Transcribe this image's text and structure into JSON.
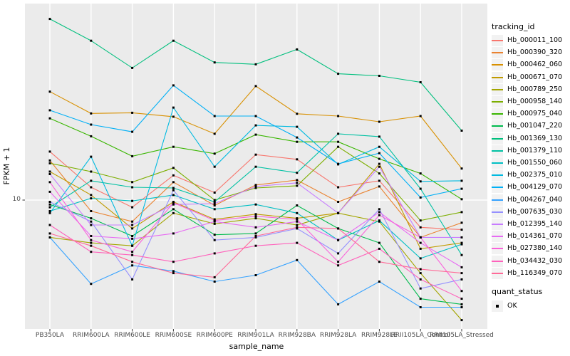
{
  "figure": {
    "background": "#FFFFFF",
    "panel_background": "#EBEBEB",
    "gridline_color": "#FFFFFF",
    "axis_text_color": "#4D4D4D",
    "tick_mark_color": "#333333",
    "point_color": "#000000"
  },
  "axes": {
    "x": {
      "title": "sample_name"
    },
    "y": {
      "title": "FPKM + 1",
      "tick_labels": [
        "10"
      ],
      "scale": "log10"
    }
  },
  "legend": {
    "tracking": {
      "title": "tracking_id"
    },
    "quant": {
      "title": "quant_status",
      "items": [
        {
          "label": "OK",
          "symbol": "black-square"
        }
      ]
    }
  },
  "chart_data": {
    "type": "line",
    "title": "",
    "xlabel": "sample_name",
    "ylabel": "FPKM + 1",
    "y_scale": "log10",
    "y_axis_ticks": [
      10
    ],
    "y_range_approx": [
      2.2,
      97
    ],
    "grid": true,
    "legend_position": "right",
    "point_shape": "filled-black-square",
    "quant_status": "OK",
    "x_categories": [
      "PB350LA",
      "RRIM600LA",
      "RRIM600LE",
      "RRIM600SE",
      "RRIM600PE",
      "RRIM901LA",
      "RRIM928BA",
      "RRIM928LA",
      "RRIM928LE",
      "RRII105LA_Control",
      "RRII105LA_Stressed"
    ],
    "series": [
      {
        "name": "Hb_000011_100",
        "color": "#F8766D",
        "values": [
          17.5,
          11.6,
          9.2,
          13.3,
          10.9,
          16.9,
          16.0,
          11.6,
          12.5,
          7.3,
          7.1
        ]
      },
      {
        "name": "Hb_000390_320",
        "color": "#EA8331",
        "values": [
          15.8,
          8.8,
          7.8,
          12.3,
          9.4,
          11.9,
          12.6,
          9.8,
          11.7,
          6.5,
          7.7
        ]
      },
      {
        "name": "Hb_000462_060",
        "color": "#D89000",
        "values": [
          35.0,
          27.2,
          27.4,
          26.2,
          21.5,
          37.3,
          27.1,
          26.4,
          24.7,
          26.4,
          14.4
        ]
      },
      {
        "name": "Hb_000671_070",
        "color": "#C09B00",
        "values": [
          13.9,
          10.6,
          7.2,
          9.8,
          8.0,
          8.5,
          8.1,
          8.6,
          15.2,
          5.7,
          6.1
        ]
      },
      {
        "name": "Hb_000789_250",
        "color": "#A3A500",
        "values": [
          6.5,
          6.1,
          5.9,
          8.6,
          7.6,
          8.1,
          7.5,
          8.6,
          7.8,
          4.3,
          2.5
        ]
      },
      {
        "name": "Hb_000958_140",
        "color": "#7CAE00",
        "values": [
          15.3,
          13.9,
          12.3,
          14.5,
          10.0,
          11.5,
          11.8,
          18.5,
          13.6,
          7.9,
          8.7
        ]
      },
      {
        "name": "Hb_000975_040",
        "color": "#39B600",
        "values": [
          25.7,
          20.9,
          16.6,
          18.5,
          17.1,
          21.3,
          19.6,
          19.6,
          16.1,
          13.6,
          10.1
        ]
      },
      {
        "name": "Hb_001047_220",
        "color": "#00BB4E",
        "values": [
          9.5,
          8.1,
          6.6,
          9.0,
          6.7,
          6.8,
          9.4,
          7.2,
          6.1,
          3.2,
          3.0
        ]
      },
      {
        "name": "Hb_001369_130",
        "color": "#00BF7D",
        "values": [
          81.0,
          63.0,
          46.0,
          63.0,
          49.0,
          48.0,
          57.0,
          43.0,
          42.0,
          39.0,
          22.3
        ]
      },
      {
        "name": "Hb_001379_110",
        "color": "#00C1A3",
        "values": [
          9.2,
          12.5,
          11.6,
          11.5,
          9.8,
          14.7,
          13.7,
          21.5,
          20.8,
          11.4,
          5.3
        ]
      },
      {
        "name": "Hb_001550_060",
        "color": "#00BFC4",
        "values": [
          8.8,
          10.2,
          9.9,
          10.6,
          9.0,
          9.5,
          8.6,
          6.3,
          7.9,
          5.1,
          6.0
        ]
      },
      {
        "name": "Hb_002375_010",
        "color": "#00BAE0",
        "values": [
          8.6,
          16.5,
          5.9,
          29.1,
          14.7,
          23.7,
          23.3,
          15.1,
          18.5,
          12.4,
          12.5
        ]
      },
      {
        "name": "Hb_004129_070",
        "color": "#00B0F6",
        "values": [
          28.2,
          23.9,
          22.0,
          37.6,
          26.4,
          26.4,
          20.6,
          15.2,
          17.2,
          10.3,
          11.4
        ]
      },
      {
        "name": "Hb_004267_040",
        "color": "#35A2FF",
        "values": [
          6.5,
          3.8,
          4.7,
          4.4,
          3.9,
          4.2,
          5.0,
          3.0,
          3.9,
          2.9,
          2.9
        ]
      },
      {
        "name": "Hb_007635_030",
        "color": "#9590FF",
        "values": [
          9.8,
          7.8,
          4.0,
          11.2,
          6.3,
          6.5,
          7.2,
          5.4,
          9.0,
          3.6,
          4.0
        ]
      },
      {
        "name": "Hb_012395_140",
        "color": "#C77CFF",
        "values": [
          13.5,
          7.5,
          7.5,
          9.5,
          9.6,
          11.7,
          12.2,
          8.6,
          14.7,
          6.5,
          6.5
        ]
      },
      {
        "name": "Hb_014361_070",
        "color": "#E76BF3",
        "values": [
          11.0,
          6.6,
          6.4,
          6.8,
          7.8,
          7.3,
          7.8,
          6.3,
          8.7,
          6.1,
          4.6
        ]
      },
      {
        "name": "Hb_027380_140",
        "color": "#FA62DB",
        "values": [
          12.3,
          6.3,
          5.5,
          9.7,
          7.9,
          8.3,
          8.0,
          4.9,
          8.4,
          6.5,
          3.5
        ]
      },
      {
        "name": "Hb_034432_030",
        "color": "#FF62BC",
        "values": [
          7.5,
          5.5,
          5.3,
          4.9,
          5.4,
          5.9,
          6.1,
          4.7,
          5.7,
          4.0,
          3.2
        ]
      },
      {
        "name": "Hb_116349_070",
        "color": "#FF6A98",
        "values": [
          6.8,
          5.9,
          4.9,
          4.3,
          4.1,
          6.6,
          7.3,
          7.2,
          4.9,
          4.5,
          4.3
        ]
      }
    ]
  }
}
